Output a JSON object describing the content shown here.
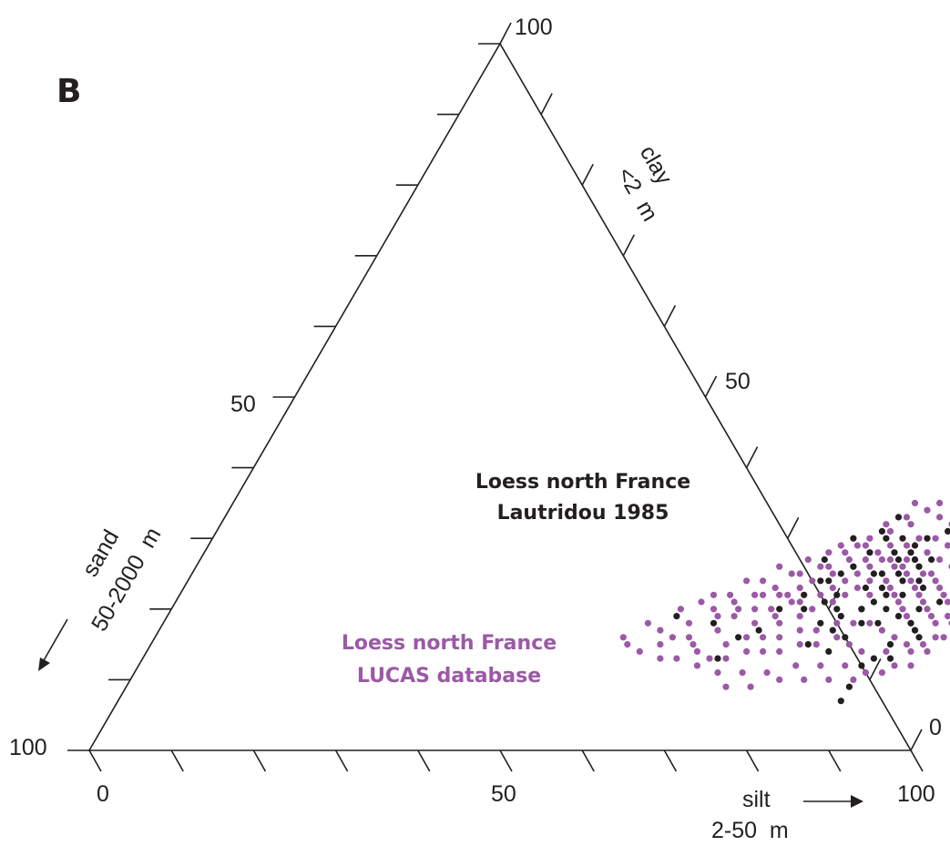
{
  "panel_label": "B",
  "chart_data": {
    "type": "scatter",
    "subtype": "ternary",
    "title": "",
    "axes": {
      "bottom": {
        "name": "silt",
        "unit": "2-50  m",
        "ticks": [
          "0",
          "50",
          "100"
        ],
        "range": [
          0,
          100
        ]
      },
      "right": {
        "name": "clay",
        "unit": "<2  m",
        "ticks": [
          "0",
          "50",
          "100"
        ],
        "range": [
          0,
          100
        ]
      },
      "left": {
        "name": "sand",
        "unit": "50-2000  m",
        "ticks": [
          "50",
          "100"
        ],
        "range": [
          0,
          100
        ]
      }
    },
    "grid": false,
    "annotations": [
      {
        "line1": "Loess north France",
        "line2": "Lautridou 1985",
        "color": "#231f20"
      },
      {
        "line1": "Loess north France",
        "line2": "LUCAS database",
        "color": "#9b59a6"
      }
    ],
    "series": [
      {
        "color": "#231f20",
        "note": "points as [silt %, clay %]",
        "points": [
          [
            70,
            13
          ],
          [
            77,
            20
          ],
          [
            77,
            24
          ],
          [
            76,
            27
          ],
          [
            78,
            30
          ],
          [
            81,
            28
          ],
          [
            81,
            31
          ],
          [
            82,
            30
          ],
          [
            82,
            33
          ],
          [
            84,
            30
          ],
          [
            85,
            27
          ],
          [
            86,
            25
          ],
          [
            86,
            29
          ],
          [
            87,
            24
          ],
          [
            87,
            27
          ],
          [
            88,
            26
          ],
          [
            89,
            24
          ],
          [
            89,
            27
          ],
          [
            88,
            22
          ],
          [
            86,
            22
          ],
          [
            85,
            21
          ],
          [
            84,
            20
          ],
          [
            82,
            19
          ],
          [
            81,
            20
          ],
          [
            80,
            22
          ],
          [
            79,
            21
          ],
          [
            80,
            18
          ],
          [
            82,
            17
          ],
          [
            85,
            18
          ],
          [
            87,
            18
          ],
          [
            89,
            19
          ],
          [
            91,
            18
          ],
          [
            92,
            17
          ],
          [
            93,
            16
          ],
          [
            91,
            13
          ],
          [
            89,
            13
          ],
          [
            88,
            12
          ],
          [
            90,
            15
          ],
          [
            88,
            9
          ],
          [
            88,
            7
          ],
          [
            84,
            20
          ],
          [
            83,
            23
          ],
          [
            84,
            25
          ],
          [
            85,
            23
          ],
          [
            83,
            25
          ],
          [
            86,
            28
          ],
          [
            87,
            30
          ],
          [
            89,
            31
          ],
          [
            73,
            17
          ],
          [
            71,
            16
          ],
          [
            79,
            25
          ],
          [
            80,
            26
          ],
          [
            78,
            24
          ],
          [
            76,
            22
          ],
          [
            74,
            20
          ],
          [
            62,
            19
          ],
          [
            67,
            18
          ],
          [
            91,
            20
          ],
          [
            93,
            21
          ],
          [
            90,
            23
          ],
          [
            87,
            20
          ],
          [
            84,
            16
          ],
          [
            83,
            14
          ],
          [
            80,
            15
          ],
          [
            84,
            28
          ]
        ]
      },
      {
        "color": "#9b59a6",
        "note": "points as [silt %, clay %]",
        "points": [
          [
            66,
            15
          ],
          [
            68,
            17
          ],
          [
            69,
            19
          ],
          [
            71,
            20
          ],
          [
            73,
            20
          ],
          [
            74,
            19
          ],
          [
            75,
            18
          ],
          [
            75,
            21
          ],
          [
            76,
            21
          ],
          [
            77,
            19
          ],
          [
            78,
            20
          ],
          [
            78,
            22
          ],
          [
            79,
            23
          ],
          [
            80,
            21
          ],
          [
            80,
            24
          ],
          [
            81,
            22
          ],
          [
            81,
            25
          ],
          [
            82,
            23
          ],
          [
            82,
            26
          ],
          [
            83,
            24
          ],
          [
            83,
            27
          ],
          [
            84,
            22
          ],
          [
            84,
            25
          ],
          [
            85,
            24
          ],
          [
            85,
            26
          ],
          [
            86,
            23
          ],
          [
            86,
            26
          ],
          [
            87,
            22
          ],
          [
            87,
            25
          ],
          [
            88,
            21
          ],
          [
            88,
            24
          ],
          [
            89,
            20
          ],
          [
            89,
            23
          ],
          [
            90,
            19
          ],
          [
            90,
            22
          ],
          [
            91,
            18
          ],
          [
            91,
            21
          ],
          [
            92,
            17
          ],
          [
            92,
            20
          ],
          [
            93,
            19
          ],
          [
            94,
            18
          ],
          [
            93,
            22
          ],
          [
            91,
            24
          ],
          [
            89,
            25
          ],
          [
            87,
            27
          ],
          [
            85,
            29
          ],
          [
            83,
            29
          ],
          [
            81,
            27
          ],
          [
            79,
            27
          ],
          [
            77,
            26
          ],
          [
            75,
            23
          ],
          [
            73,
            22
          ],
          [
            71,
            22
          ],
          [
            69,
            20
          ],
          [
            67,
            19
          ],
          [
            65,
            16
          ],
          [
            67,
            14
          ],
          [
            70,
            15
          ],
          [
            72,
            16
          ],
          [
            74,
            16
          ],
          [
            76,
            16
          ],
          [
            78,
            17
          ],
          [
            80,
            17
          ],
          [
            82,
            18
          ],
          [
            84,
            18
          ],
          [
            86,
            18
          ],
          [
            88,
            17
          ],
          [
            90,
            16
          ],
          [
            92,
            15
          ],
          [
            94,
            15
          ],
          [
            95,
            16
          ],
          [
            93,
            14
          ],
          [
            90,
            14
          ],
          [
            87,
            14
          ],
          [
            85,
            15
          ],
          [
            83,
            16
          ],
          [
            81,
            15
          ],
          [
            79,
            15
          ],
          [
            77,
            14
          ],
          [
            75,
            14
          ],
          [
            73,
            14
          ],
          [
            71,
            13
          ],
          [
            69,
            13
          ],
          [
            72,
            18
          ],
          [
            74,
            22
          ],
          [
            76,
            24
          ],
          [
            78,
            25
          ],
          [
            80,
            26
          ],
          [
            82,
            28
          ],
          [
            84,
            27
          ],
          [
            86,
            27
          ],
          [
            88,
            26
          ],
          [
            90,
            25
          ],
          [
            92,
            23
          ],
          [
            94,
            21
          ],
          [
            95,
            19
          ],
          [
            96,
            18
          ],
          [
            96,
            20
          ],
          [
            94,
            24
          ],
          [
            92,
            26
          ],
          [
            90,
            27
          ],
          [
            88,
            28
          ],
          [
            86,
            30
          ],
          [
            84,
            32
          ],
          [
            82,
            31
          ],
          [
            80,
            29
          ],
          [
            78,
            28
          ],
          [
            76,
            26
          ],
          [
            74,
            25
          ],
          [
            72,
            23
          ],
          [
            70,
            22
          ],
          [
            68,
            21
          ],
          [
            66,
            20
          ],
          [
            64,
            18
          ],
          [
            63,
            16
          ],
          [
            62,
            15
          ],
          [
            61,
            17
          ],
          [
            64,
            21
          ],
          [
            67,
            22
          ],
          [
            70,
            24
          ],
          [
            73,
            25
          ],
          [
            76,
            28
          ],
          [
            79,
            29
          ],
          [
            81,
            32
          ],
          [
            83,
            33
          ],
          [
            85,
            34
          ],
          [
            87,
            33
          ],
          [
            89,
            32
          ],
          [
            91,
            29
          ],
          [
            93,
            28
          ],
          [
            95,
            24
          ],
          [
            96,
            22
          ],
          [
            97,
            19
          ],
          [
            97,
            17
          ],
          [
            95,
            14
          ],
          [
            92,
            12
          ],
          [
            89,
            11
          ],
          [
            86,
            12
          ],
          [
            83,
            12
          ],
          [
            80,
            12
          ],
          [
            77,
            11
          ],
          [
            74,
            11
          ],
          [
            71,
            11
          ],
          [
            68,
            12
          ],
          [
            65,
            13
          ],
          [
            63,
            13
          ],
          [
            60,
            14
          ],
          [
            58,
            15
          ],
          [
            57,
            16
          ],
          [
            59,
            18
          ],
          [
            62,
            20
          ],
          [
            65,
            22
          ],
          [
            68,
            24
          ],
          [
            71,
            26
          ],
          [
            74,
            27
          ],
          [
            77,
            29
          ],
          [
            80,
            30
          ],
          [
            83,
            35
          ],
          [
            86,
            35
          ],
          [
            88,
            30
          ],
          [
            90,
            29
          ],
          [
            92,
            28
          ],
          [
            94,
            27
          ],
          [
            96,
            26
          ],
          [
            97,
            24
          ],
          [
            98,
            22
          ],
          [
            98,
            20
          ],
          [
            97,
            21
          ],
          [
            96,
            16
          ],
          [
            94,
            12
          ],
          [
            91,
            11
          ],
          [
            88,
            10
          ],
          [
            85,
            10
          ],
          [
            82,
            10
          ],
          [
            79,
            10
          ],
          [
            76,
            9
          ],
          [
            73,
            9
          ]
        ]
      }
    ]
  }
}
